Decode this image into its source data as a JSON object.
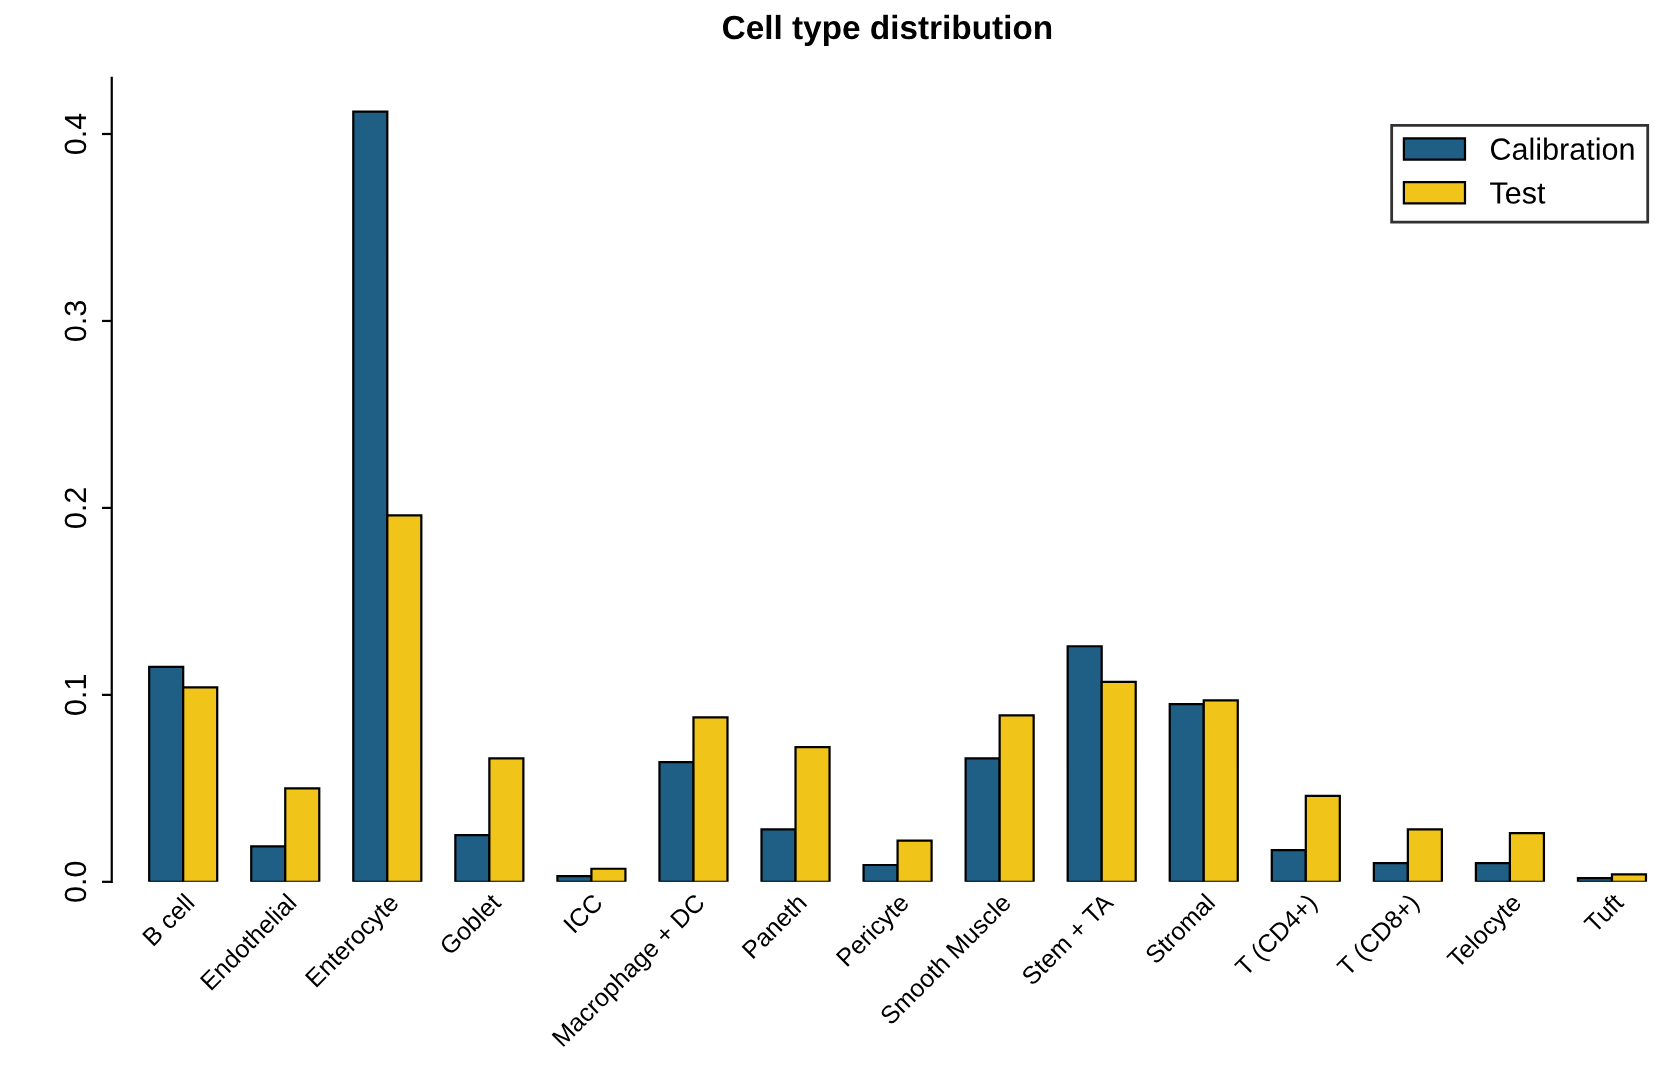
{
  "chart_data": {
    "type": "bar",
    "title": "Cell type distribution",
    "categories": [
      "B cell",
      "Endothelial",
      "Enterocyte",
      "Goblet",
      "ICC",
      "Macrophage + DC",
      "Paneth",
      "Pericyte",
      "Smooth Muscle",
      "Stem + TA",
      "Stromal",
      "T (CD4+)",
      "T (CD8+)",
      "Telocyte",
      "Tuft"
    ],
    "series": [
      {
        "name": "Calibration",
        "color": "#1f5f86",
        "values": [
          0.115,
          0.019,
          0.412,
          0.025,
          0.003,
          0.064,
          0.028,
          0.009,
          0.066,
          0.126,
          0.095,
          0.017,
          0.01,
          0.01,
          0.002
        ]
      },
      {
        "name": "Test",
        "color": "#f0c419",
        "values": [
          0.104,
          0.05,
          0.196,
          0.066,
          0.007,
          0.088,
          0.072,
          0.022,
          0.089,
          0.107,
          0.097,
          0.046,
          0.028,
          0.026,
          0.004
        ]
      }
    ],
    "ylim": [
      0,
      0.43
    ],
    "yticks": [
      {
        "value": 0,
        "label": "0.0"
      },
      {
        "value": 0.1,
        "label": "0.1"
      },
      {
        "value": 0.2,
        "label": "0.2"
      },
      {
        "value": 0.3,
        "label": "0.3"
      },
      {
        "value": 0.4,
        "label": "0.4"
      }
    ],
    "grid": false,
    "legend": "top right"
  }
}
